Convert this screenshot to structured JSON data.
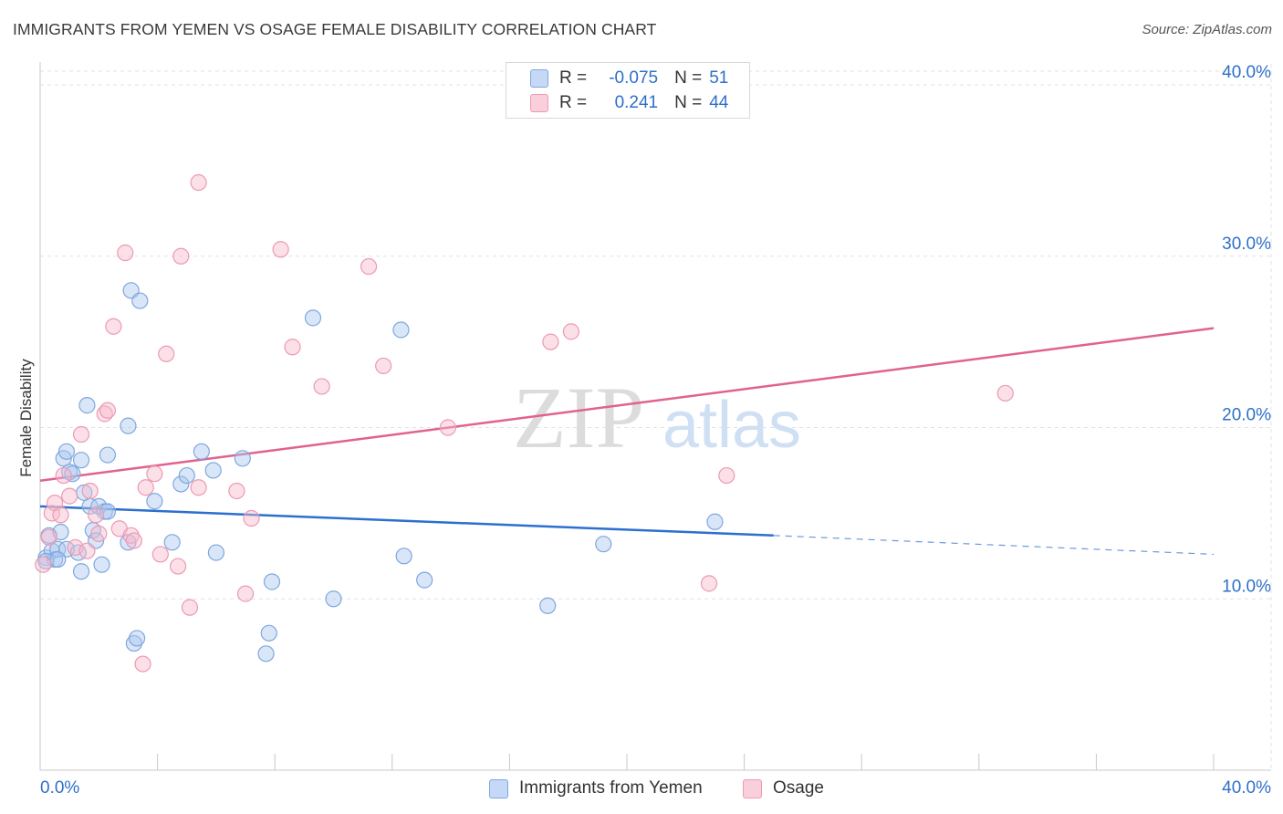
{
  "header": {
    "title": "IMMIGRANTS FROM YEMEN VS OSAGE FEMALE DISABILITY CORRELATION CHART",
    "source": "Source: ZipAtlas.com"
  },
  "watermark": {
    "zip": "ZIP",
    "atlas": "atlas"
  },
  "legend": {
    "rows": [
      {
        "r_label": "R =",
        "r_value": "-0.075",
        "n_label": "N =",
        "n_value": "51",
        "color": "#7fa7df"
      },
      {
        "r_label": "R =",
        "r_value": "0.241",
        "n_label": "N =",
        "n_value": "44",
        "color": "#ec9ab4"
      }
    ]
  },
  "bottom_legend": [
    {
      "label": "Immigrants from Yemen",
      "color": "#7fa7df"
    },
    {
      "label": "Osage",
      "color": "#ec9ab4"
    }
  ],
  "chart_data": {
    "type": "scatter",
    "title": "IMMIGRANTS FROM YEMEN VS OSAGE FEMALE DISABILITY CORRELATION CHART",
    "xlabel": "",
    "ylabel": "Female Disability",
    "xlim": [
      0,
      40
    ],
    "ylim": [
      0,
      40.8
    ],
    "x_tick_labels": [
      "0.0%",
      "40.0%"
    ],
    "y_ticks": [
      10,
      20,
      30,
      40
    ],
    "y_tick_labels": [
      "10.0%",
      "20.0%",
      "30.0%",
      "40.0%"
    ],
    "x_minor_ticks": [
      4,
      8,
      12,
      16,
      20,
      24,
      28,
      32,
      36,
      40
    ],
    "grid": true,
    "series": [
      {
        "name": "Immigrants from Yemen",
        "color": "#7fa7df",
        "line_color": "#2c6fcf",
        "trend": {
          "x": [
            0,
            25
          ],
          "y": [
            15.4,
            13.7
          ],
          "dash_to_x": 40,
          "dash_to_y": 12.6
        },
        "points": [
          [
            0.2,
            12.4
          ],
          [
            0.3,
            13.7
          ],
          [
            0.4,
            12.8
          ],
          [
            0.5,
            12.3
          ],
          [
            0.6,
            12.9
          ],
          [
            0.7,
            13.9
          ],
          [
            0.8,
            18.2
          ],
          [
            0.9,
            12.9
          ],
          [
            0.9,
            18.6
          ],
          [
            1.0,
            17.4
          ],
          [
            1.1,
            17.3
          ],
          [
            1.3,
            12.7
          ],
          [
            1.4,
            11.6
          ],
          [
            1.4,
            18.1
          ],
          [
            1.5,
            16.2
          ],
          [
            1.6,
            21.3
          ],
          [
            1.7,
            15.4
          ],
          [
            1.8,
            14.0
          ],
          [
            1.9,
            13.4
          ],
          [
            2.0,
            15.4
          ],
          [
            2.1,
            12.0
          ],
          [
            2.2,
            15.1
          ],
          [
            2.3,
            15.1
          ],
          [
            2.3,
            18.4
          ],
          [
            3.0,
            20.1
          ],
          [
            3.0,
            13.3
          ],
          [
            3.1,
            28.0
          ],
          [
            3.2,
            7.4
          ],
          [
            3.3,
            7.7
          ],
          [
            3.4,
            27.4
          ],
          [
            3.9,
            15.7
          ],
          [
            4.5,
            13.3
          ],
          [
            4.8,
            16.7
          ],
          [
            5.0,
            17.2
          ],
          [
            5.5,
            18.6
          ],
          [
            5.9,
            17.5
          ],
          [
            6.0,
            12.7
          ],
          [
            6.9,
            18.2
          ],
          [
            7.7,
            6.8
          ],
          [
            7.8,
            8.0
          ],
          [
            7.9,
            11.0
          ],
          [
            9.3,
            26.4
          ],
          [
            10.0,
            10.0
          ],
          [
            12.3,
            25.7
          ],
          [
            12.4,
            12.5
          ],
          [
            13.1,
            11.1
          ],
          [
            17.3,
            9.6
          ],
          [
            19.2,
            13.2
          ],
          [
            23.0,
            14.5
          ],
          [
            0.2,
            12.2
          ],
          [
            0.6,
            12.3
          ]
        ]
      },
      {
        "name": "Osage",
        "color": "#ec9ab4",
        "line_color": "#e0628f",
        "trend": {
          "x": [
            0,
            40
          ],
          "y": [
            16.9,
            25.8
          ]
        },
        "points": [
          [
            0.1,
            12.0
          ],
          [
            0.3,
            13.6
          ],
          [
            0.4,
            15.0
          ],
          [
            0.5,
            15.6
          ],
          [
            0.7,
            14.9
          ],
          [
            0.8,
            17.2
          ],
          [
            1.0,
            16.0
          ],
          [
            1.2,
            13.0
          ],
          [
            1.4,
            19.6
          ],
          [
            1.6,
            12.8
          ],
          [
            1.7,
            16.3
          ],
          [
            1.9,
            14.9
          ],
          [
            2.0,
            13.8
          ],
          [
            2.2,
            20.8
          ],
          [
            2.3,
            21.0
          ],
          [
            2.5,
            25.9
          ],
          [
            2.7,
            14.1
          ],
          [
            2.9,
            30.2
          ],
          [
            3.1,
            13.7
          ],
          [
            3.2,
            13.4
          ],
          [
            3.5,
            6.2
          ],
          [
            3.6,
            16.5
          ],
          [
            3.9,
            17.3
          ],
          [
            4.1,
            12.6
          ],
          [
            4.3,
            24.3
          ],
          [
            4.7,
            11.9
          ],
          [
            4.8,
            30.0
          ],
          [
            5.1,
            9.5
          ],
          [
            5.4,
            16.5
          ],
          [
            5.4,
            34.3
          ],
          [
            6.7,
            16.3
          ],
          [
            7.0,
            10.3
          ],
          [
            7.2,
            14.7
          ],
          [
            8.2,
            30.4
          ],
          [
            8.6,
            24.7
          ],
          [
            9.6,
            22.4
          ],
          [
            11.2,
            29.4
          ],
          [
            11.7,
            23.6
          ],
          [
            13.9,
            20.0
          ],
          [
            17.4,
            25.0
          ],
          [
            18.1,
            25.6
          ],
          [
            22.8,
            10.9
          ],
          [
            23.4,
            17.2
          ],
          [
            32.9,
            22.0
          ]
        ]
      }
    ]
  }
}
